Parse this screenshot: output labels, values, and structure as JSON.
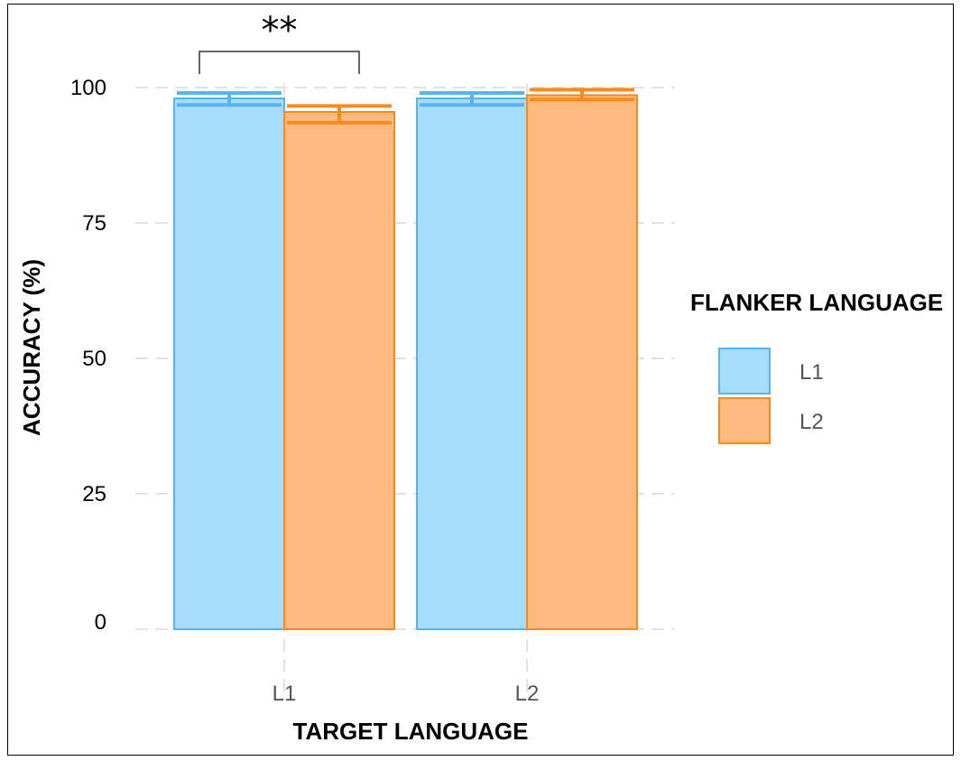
{
  "chart_data": {
    "type": "bar",
    "xlabel": "TARGET LANGUAGE",
    "ylabel": "ACCURACY (%)",
    "categories": [
      "L1",
      "L2"
    ],
    "ylim": [
      0,
      100
    ],
    "yticks": [
      0,
      25,
      50,
      75,
      100
    ],
    "legend": {
      "title": "FLANKER LANGUAGE",
      "position": "right"
    },
    "series": [
      {
        "name": "L1",
        "values": [
          98.0,
          98.0
        ],
        "error_low": [
          96.8,
          96.8
        ],
        "error_high": [
          99.0,
          99.0
        ],
        "fill": "#a6dbfa",
        "stroke": "#5ab4ec"
      },
      {
        "name": "L2",
        "values": [
          95.5,
          98.6
        ],
        "error_low": [
          93.5,
          97.8
        ],
        "error_high": [
          96.6,
          99.6
        ],
        "fill": "#fdba7f",
        "stroke": "#f98a1e"
      }
    ],
    "annotations": [
      {
        "type": "significance",
        "category": "L1",
        "text": "**"
      }
    ],
    "grid": true
  }
}
